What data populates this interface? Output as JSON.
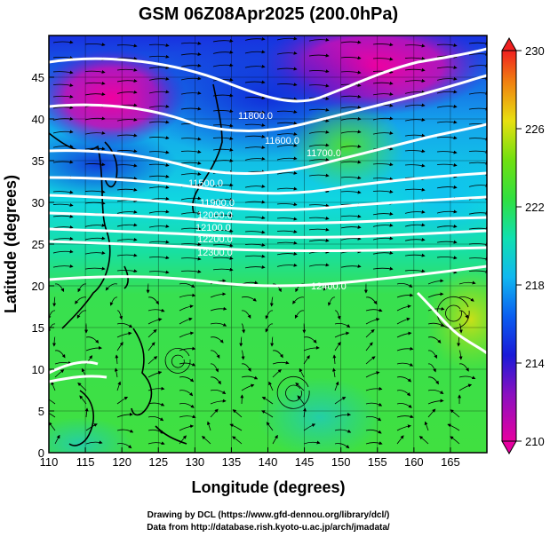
{
  "title": "GSM 06Z08Apr2025 (200.0hPa)",
  "x_axis": {
    "label": "Longitude (degrees)",
    "range": [
      110,
      170
    ],
    "ticks": [
      "110",
      "115",
      "120",
      "125",
      "130",
      "135",
      "140",
      "145",
      "150",
      "155",
      "160",
      "165"
    ]
  },
  "y_axis": {
    "label": "Latitude  (degrees)",
    "range": [
      0,
      50
    ],
    "ticks": [
      "0",
      "5",
      "10",
      "15",
      "20",
      "25",
      "30",
      "35",
      "40",
      "45"
    ]
  },
  "colorbar": {
    "range": [
      210,
      230
    ],
    "ticks": [
      "210",
      "214",
      "218",
      "222",
      "226",
      "230"
    ]
  },
  "contour_labels": [
    "11500.0",
    "11600.0",
    "11700.0",
    "11800.0",
    "11900.0",
    "12000.0",
    "12100.0",
    "12200.0",
    "12300.0",
    "12400.0"
  ],
  "credits": {
    "line1": "Drawing by DCL (https://www.gfd-dennou.org/library/dcl/)",
    "line2": "Data from http://database.rish.kyoto-u.ac.jp/arch/jmadata/"
  },
  "colors": {
    "shade_low": "#e6007a",
    "shade_mid": "#0a2ee0",
    "shade_cyan": "#14c8e0",
    "shade_green": "#3ee03a",
    "shade_high": "#f0281e",
    "contour": "#ffffff",
    "streamline": "#000000",
    "coastline": "#000000"
  }
}
